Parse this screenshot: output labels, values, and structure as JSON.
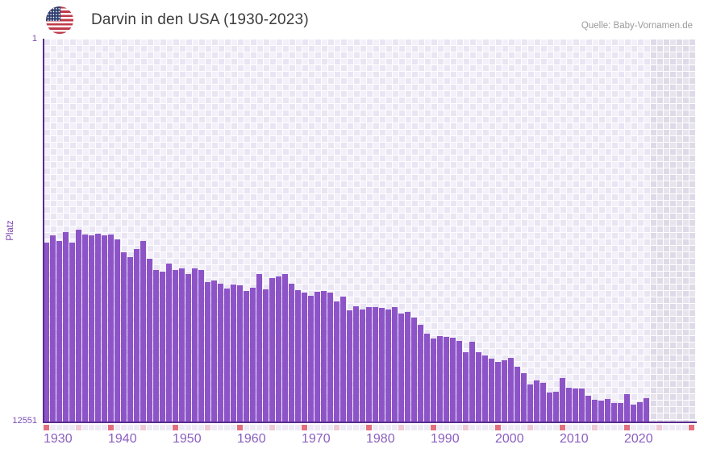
{
  "header": {
    "title": "Darvin in den USA (1930-2023)",
    "source": "Quelle: Baby-Vornamen.de",
    "flag_icon": "us-flag-icon"
  },
  "axes": {
    "y_label": "Platz",
    "y_top_tick": "1",
    "y_bottom_tick": "12551",
    "x_ticks": [
      "1930",
      "1940",
      "1950",
      "1960",
      "1970",
      "1980",
      "1990",
      "2000",
      "2010",
      "2020"
    ]
  },
  "colors": {
    "bar": "#8d54c8",
    "axis_line": "#5a2b8f",
    "tick_decade": "#e2707e",
    "tick_mid": "#eec9d6",
    "tick_default": "#eeeaf5",
    "x_label": "#8a5fc0",
    "y_label": "#7b42ad",
    "title": "#3d3d3d",
    "source": "#9b9b9b",
    "grid_light": "#f3f0fa",
    "grid_dark": "#eae5f3",
    "grid_future": "#e1dee9"
  },
  "chart_data": {
    "type": "bar",
    "title": "Darvin in den USA (1930-2023)",
    "xlabel": "",
    "ylabel": "Platz",
    "y_scale": "log",
    "y_axis_inverted": true,
    "ylim": [
      1,
      12551
    ],
    "x_range": [
      1930,
      2023
    ],
    "grid_x_extent": [
      1930,
      2030
    ],
    "legend": "none",
    "years": [
      1930,
      1931,
      1932,
      1933,
      1934,
      1935,
      1936,
      1937,
      1938,
      1939,
      1940,
      1941,
      1942,
      1943,
      1944,
      1945,
      1946,
      1947,
      1948,
      1949,
      1950,
      1951,
      1952,
      1953,
      1954,
      1955,
      1956,
      1957,
      1958,
      1959,
      1960,
      1961,
      1962,
      1963,
      1964,
      1965,
      1966,
      1967,
      1968,
      1969,
      1970,
      1971,
      1972,
      1973,
      1974,
      1975,
      1976,
      1977,
      1978,
      1979,
      1980,
      1981,
      1982,
      1983,
      1984,
      1985,
      1986,
      1987,
      1988,
      1989,
      1990,
      1991,
      1992,
      1993,
      1994,
      1995,
      1996,
      1997,
      1998,
      1999,
      2000,
      2001,
      2002,
      2003,
      2004,
      2005,
      2006,
      2007,
      2008,
      2009,
      2010,
      2011,
      2012,
      2013,
      2014,
      2015,
      2016,
      2017,
      2018,
      2019,
      2020,
      2021,
      2022,
      2023
    ],
    "values": [
      152,
      128,
      146,
      118,
      152,
      111,
      125,
      128,
      123,
      128,
      125,
      141,
      194,
      218,
      179,
      146,
      227,
      299,
      312,
      256,
      299,
      288,
      331,
      288,
      299,
      404,
      388,
      420,
      473,
      428,
      437,
      502,
      464,
      331,
      483,
      365,
      351,
      331,
      420,
      492,
      522,
      566,
      512,
      502,
      522,
      650,
      577,
      809,
      732,
      793,
      747,
      747,
      762,
      793,
      747,
      876,
      841,
      967,
      1156,
      1439,
      1621,
      1527,
      1558,
      1589,
      1721,
      2272,
      1756,
      2272,
      2460,
      2664,
      2884,
      2772,
      2612,
      3249,
      3810,
      5031,
      4555,
      4836,
      6138,
      6018,
      4291,
      5448,
      5558,
      5558,
      6646,
      7338,
      7485,
      7194,
      7944,
      7944,
      6388,
      8266,
      7787,
      7054
    ]
  }
}
